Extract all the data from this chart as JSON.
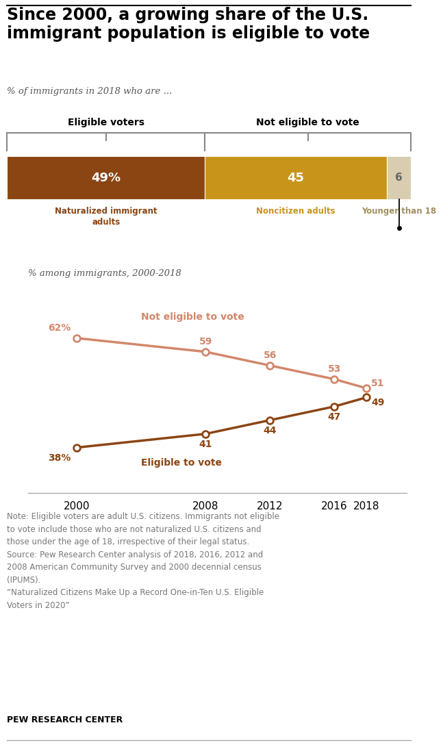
{
  "title": "Since 2000, a growing share of the U.S.\nimmigrant population is eligible to vote",
  "subtitle": "% of immigrants in 2018 who are ...",
  "bar_subtitle": "% among immigrants, 2000-2018",
  "bar_values": [
    49,
    45,
    6
  ],
  "bar_labels": [
    "49%",
    "45",
    "6"
  ],
  "bar_colors": [
    "#8B4513",
    "#C8951A",
    "#D8CDB0"
  ],
  "bar_cat_labels": [
    "Naturalized immigrant\nadults",
    "Noncitizen adults",
    "Younger than 18"
  ],
  "bar_cat_colors": [
    "#8B4513",
    "#C8951A",
    "#A09060"
  ],
  "eligible_bracket_label": "Eligible voters",
  "not_eligible_bracket_label": "Not eligible to vote",
  "line_years": [
    2000,
    2008,
    2012,
    2016,
    2018
  ],
  "eligible_values": [
    38,
    41,
    44,
    47,
    49
  ],
  "not_eligible_values": [
    62,
    59,
    56,
    53,
    51
  ],
  "eligible_color": "#8B4513",
  "not_eligible_color": "#D2876B",
  "eligible_label": "Eligible to vote",
  "not_eligible_label": "Not eligible to vote",
  "eligible_point_labels": [
    "38%",
    "41",
    "44",
    "47",
    "49"
  ],
  "not_eligible_point_labels": [
    "62%",
    "59",
    "56",
    "53",
    "51"
  ],
  "note_text": "Note: Eligible voters are adult U.S. citizens. Immigrants not eligible\nto vote include those who are not naturalized U.S. citizens and\nthose under the age of 18, irrespective of their legal status.\nSource: Pew Research Center analysis of 2018, 2016, 2012 and\n2008 American Community Survey and 2000 decennial census\n(IPUMS).\n“Naturalized Citizens Make Up a Record One-in-Ten U.S. Eligible\nVoters in 2020”",
  "source_label": "PEW RESEARCH CENTER",
  "bg_color": "#FFFFFF"
}
